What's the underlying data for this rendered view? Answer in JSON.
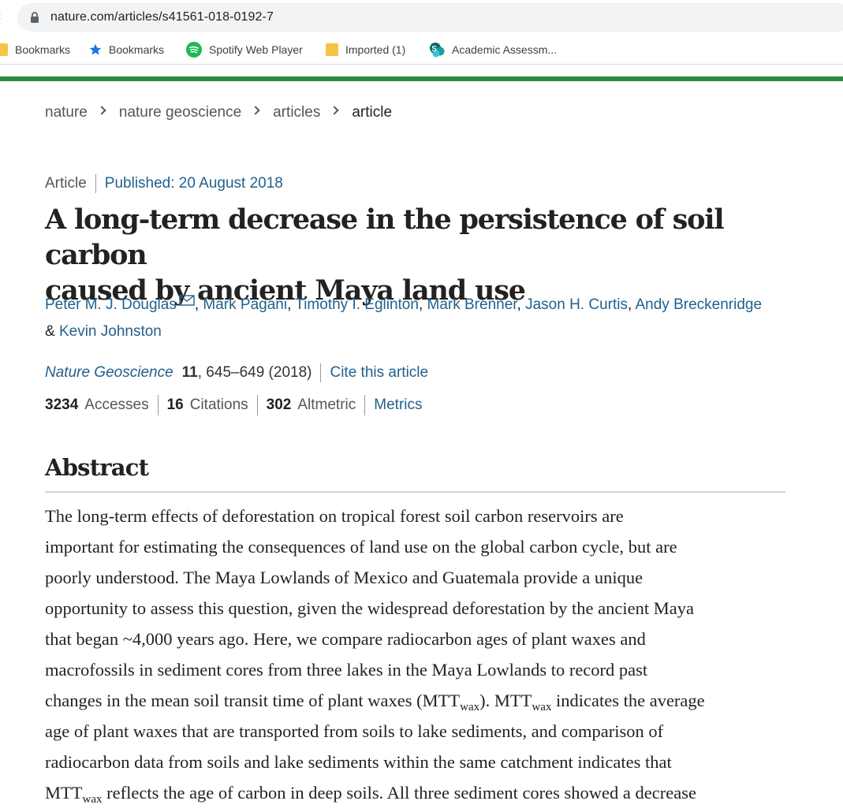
{
  "browser": {
    "url": "nature.com/articles/s41561-018-0192-7",
    "bookmarks": [
      {
        "label": "Bookmarks",
        "icon": "folder-icon"
      },
      {
        "label": "Bookmarks",
        "icon": "star-icon"
      },
      {
        "label": "Spotify Web Player",
        "icon": "spotify-icon"
      },
      {
        "label": "Imported (1)",
        "icon": "folder-icon"
      },
      {
        "label": "Academic Assessm...",
        "icon": "sharepoint-icon"
      }
    ]
  },
  "breadcrumb": [
    "nature",
    "nature geoscience",
    "articles",
    "article"
  ],
  "article": {
    "type": "Article",
    "published": "Published: 20 August 2018",
    "title_line1": "A long-term decrease in the persistence of soil carbon",
    "title_line2": "caused by ancient Maya land use",
    "authors": [
      "Peter M. J. Douglas",
      "Mark Pagani",
      "Timothy I. Eglinton",
      "Mark Brenner",
      "Jason H. Curtis",
      "Andy Breckenridge",
      "Kevin Johnston"
    ],
    "author_separator": ", ",
    "author_last_joiner": "& ",
    "journal": "Nature Geoscience",
    "volume": "11",
    "pages_year": ", 645–649 (2018)",
    "cite_label": "Cite this article",
    "metrics": {
      "accesses_count": "3234",
      "accesses_label": "Accesses",
      "citations_count": "16",
      "citations_label": "Citations",
      "altmetric_count": "302",
      "altmetric_label": "Altmetric",
      "link_label": "Metrics"
    }
  },
  "abstract": {
    "heading": "Abstract",
    "line1": "The long-term effects of deforestation on tropical forest soil carbon reservoirs are",
    "line2": "important for estimating the consequences of land use on the global carbon cycle, but are",
    "line3": "poorly understood. The Maya Lowlands of Mexico and Guatemala provide a unique",
    "line4": "opportunity to assess this question, given the widespread deforestation by the ancient Maya",
    "line5": "that began ~4,000 years ago. Here, we compare radiocarbon ages of plant waxes and",
    "line6": "macrofossils in sediment cores from three lakes in the Maya Lowlands to record past",
    "line7a": "changes in the mean soil transit time of plant waxes (MTT",
    "line7b": "). MTT",
    "line7c": " indicates the average",
    "line8": "age of plant waxes that are transported from soils to lake sediments, and comparison of",
    "line9": "radiocarbon data from soils and lake sediments within the same catchment indicates that",
    "line10a": "MTT",
    "line10b": " reflects the age of carbon in deep soils. All three sediment cores showed a decrease",
    "subscript": "wax"
  }
}
